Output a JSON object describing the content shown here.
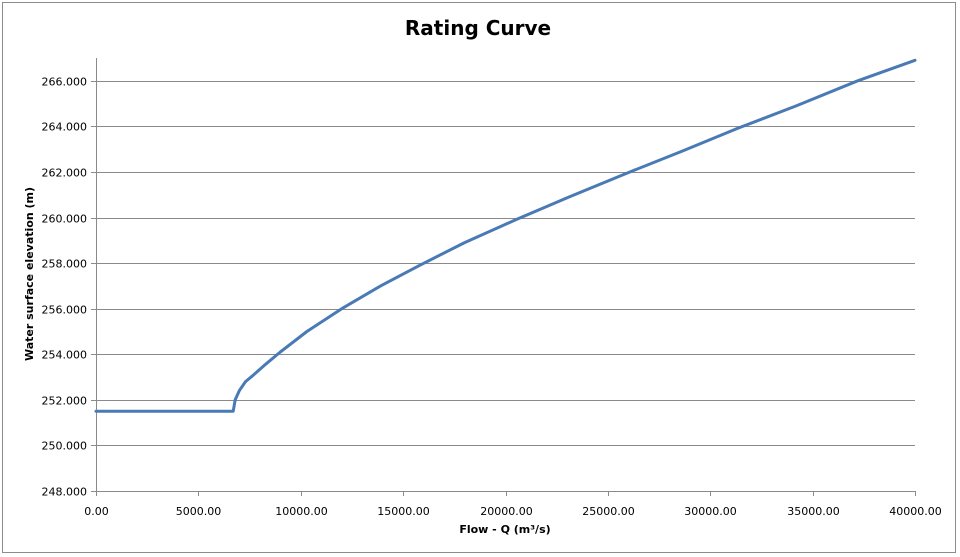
{
  "chart_data": {
    "type": "line",
    "title": "Rating Curve",
    "xlabel": "Flow - Q (m³/s)",
    "ylabel": "Water surface elevation (m)",
    "xlim": [
      0,
      40000
    ],
    "ylim": [
      248,
      267
    ],
    "x_ticks": [
      "0.00",
      "5000.00",
      "10000.00",
      "15000.00",
      "20000.00",
      "25000.00",
      "30000.00",
      "35000.00",
      "40000.00"
    ],
    "x_tick_values": [
      0,
      5000,
      10000,
      15000,
      20000,
      25000,
      30000,
      35000,
      40000
    ],
    "y_ticks": [
      "248.000",
      "250.000",
      "252.000",
      "254.000",
      "256.000",
      "258.000",
      "260.000",
      "262.000",
      "264.000",
      "266.000"
    ],
    "y_tick_values": [
      248,
      250,
      252,
      254,
      256,
      258,
      260,
      262,
      264,
      266
    ],
    "grid": "horizontal",
    "legend": "none",
    "line_color": "#4a7ab5",
    "series": [
      {
        "x": [
          0,
          6700,
          6800,
          7000,
          7300,
          7700,
          8200,
          9000,
          10300,
          12000,
          13900,
          15800,
          18000,
          20500,
          23100,
          25800,
          28600,
          31300,
          34200,
          37200,
          40000
        ],
        "y": [
          251.5,
          251.5,
          252.0,
          252.4,
          252.8,
          253.1,
          253.5,
          254.1,
          255.0,
          256.0,
          257.0,
          257.9,
          258.9,
          259.9,
          260.9,
          261.9,
          262.9,
          263.9,
          264.9,
          266.0,
          266.9
        ]
      }
    ]
  }
}
